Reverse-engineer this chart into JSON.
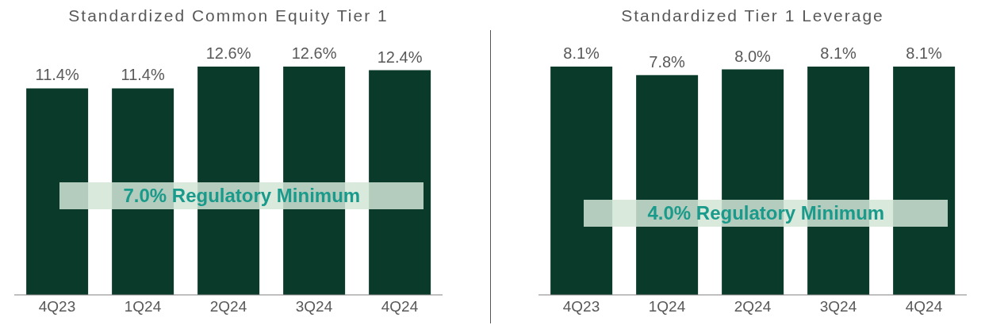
{
  "chart_data": [
    {
      "type": "bar",
      "title": "Standardized Common Equity Tier 1",
      "categories": [
        "4Q23",
        "1Q24",
        "2Q24",
        "3Q24",
        "4Q24"
      ],
      "values": [
        11.4,
        11.4,
        12.6,
        12.6,
        12.4
      ],
      "value_labels": [
        "11.4%",
        "11.4%",
        "12.6%",
        "12.6%",
        "12.4%"
      ],
      "color": "#0a3a2a",
      "annotations": [
        "7.0% Regulatory Minimum"
      ]
    },
    {
      "type": "bar",
      "title": "Standardized Tier 1 Leverage",
      "categories": [
        "4Q23",
        "1Q24",
        "2Q24",
        "3Q24",
        "4Q24"
      ],
      "values": [
        8.1,
        7.8,
        8.0,
        8.1,
        8.1
      ],
      "value_labels": [
        "8.1%",
        "7.8%",
        "8.0%",
        "8.1%",
        "8.1%"
      ],
      "color": "#0a3a2a",
      "annotations": [
        "4.0% Regulatory Minimum"
      ]
    }
  ]
}
